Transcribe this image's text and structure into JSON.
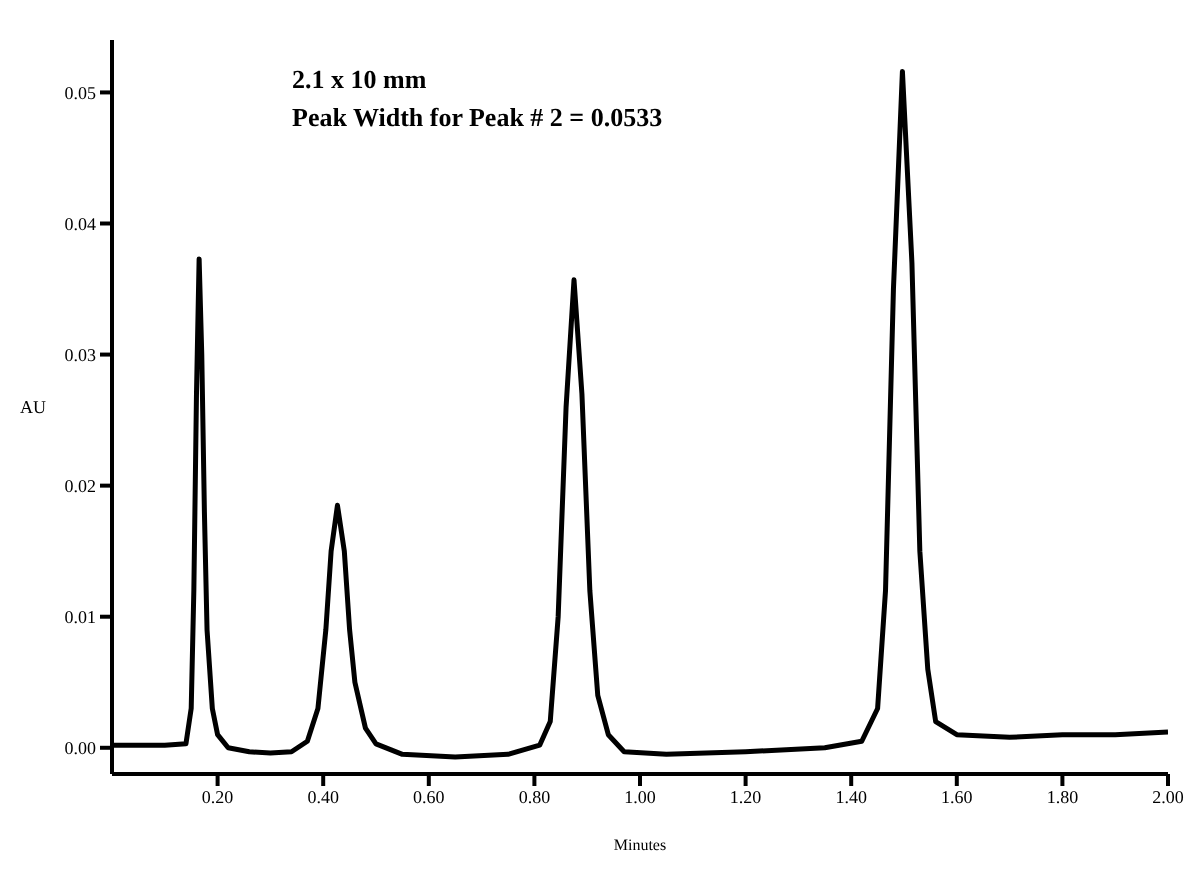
{
  "chart_data": {
    "type": "line",
    "xlabel": "Minutes",
    "ylabel": "AU",
    "annotations": [
      "2.1 x 10 mm",
      "Peak Width for Peak # 2 = 0.0533"
    ],
    "x": [
      0,
      0.05,
      0.1,
      0.14,
      0.15,
      0.155,
      0.16,
      0.165,
      0.17,
      0.175,
      0.18,
      0.19,
      0.2,
      0.22,
      0.26,
      0.3,
      0.34,
      0.37,
      0.39,
      0.405,
      0.415,
      0.427,
      0.44,
      0.45,
      0.46,
      0.48,
      0.5,
      0.55,
      0.65,
      0.75,
      0.81,
      0.83,
      0.845,
      0.86,
      0.875,
      0.89,
      0.905,
      0.92,
      0.94,
      0.97,
      1.05,
      1.2,
      1.35,
      1.42,
      1.45,
      1.465,
      1.48,
      1.497,
      1.515,
      1.53,
      1.545,
      1.56,
      1.6,
      1.7,
      1.8,
      1.9,
      2.0
    ],
    "series": [
      {
        "color": "#000000",
        "values": [
          0.0002,
          0.0002,
          0.0002,
          0.0003,
          0.003,
          0.012,
          0.027,
          0.0373,
          0.03,
          0.018,
          0.009,
          0.003,
          0.001,
          0.0,
          -0.0003,
          -0.0004,
          -0.0003,
          0.0005,
          0.003,
          0.009,
          0.015,
          0.0185,
          0.015,
          0.009,
          0.005,
          0.0015,
          0.0003,
          -0.0005,
          -0.0007,
          -0.0005,
          0.0002,
          0.002,
          0.01,
          0.026,
          0.0357,
          0.027,
          0.012,
          0.004,
          0.001,
          -0.0003,
          -0.0005,
          -0.0003,
          0.0,
          0.0005,
          0.003,
          0.012,
          0.035,
          0.0516,
          0.037,
          0.015,
          0.006,
          0.002,
          0.001,
          0.0008,
          0.001,
          0.001,
          0.0012
        ]
      }
    ],
    "xlim": [
      0,
      2.0
    ],
    "xticks": [
      {
        "value": 0.2,
        "label": "0.20"
      },
      {
        "value": 0.4,
        "label": "0.40"
      },
      {
        "value": 0.6,
        "label": "0.60"
      },
      {
        "value": 0.8,
        "label": "0.80"
      },
      {
        "value": 1.0,
        "label": "1.00"
      },
      {
        "value": 1.2,
        "label": "1.20"
      },
      {
        "value": 1.4,
        "label": "1.40"
      },
      {
        "value": 1.6,
        "label": "1.60"
      },
      {
        "value": 1.8,
        "label": "1.80"
      },
      {
        "value": 2.0,
        "label": "2.00"
      }
    ],
    "ylim": [
      -0.002,
      0.054
    ],
    "yticks": [
      {
        "value": 0,
        "label": "0.00"
      },
      {
        "value": 0.01,
        "label": "0.01"
      },
      {
        "value": 0.02,
        "label": "0.02"
      },
      {
        "value": 0.03,
        "label": "0.03"
      },
      {
        "value": 0.04,
        "label": "0.04"
      },
      {
        "value": 0.05,
        "label": "0.05"
      }
    ],
    "grid": false,
    "legend": false,
    "marker": "none",
    "line_style": "solid"
  }
}
